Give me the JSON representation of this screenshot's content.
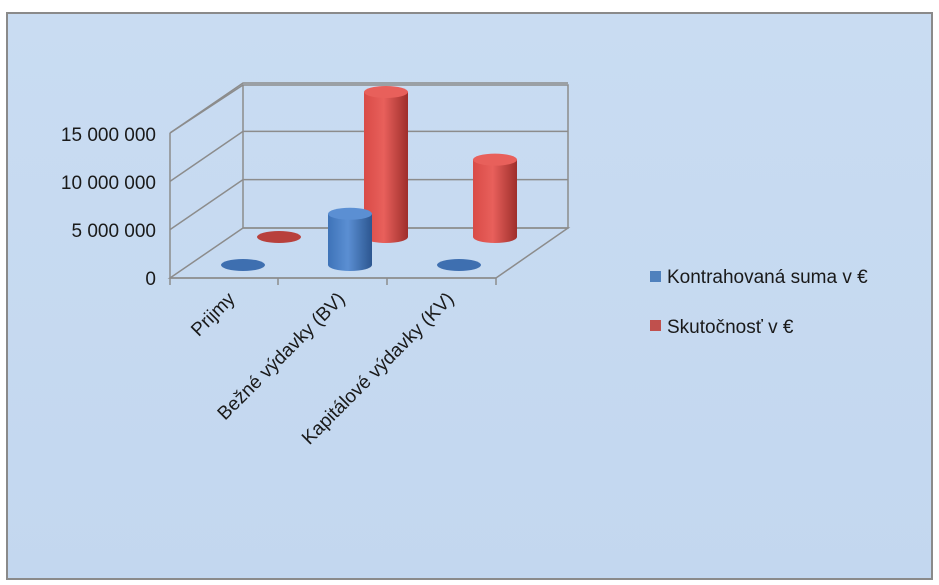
{
  "chart_data": {
    "type": "bar",
    "style": "3d-cylinder",
    "categories": [
      "Prijmy",
      "Bežné výdavky (BV)",
      "Kapitálové výdavky (KV)"
    ],
    "series": [
      {
        "name": "Kontrahovaná suma v €",
        "color": "#4f81bd",
        "values": [
          0,
          5300000,
          0
        ]
      },
      {
        "name": "Skutočnosť v €",
        "color": "#c0504d",
        "values": [
          0,
          15000000,
          8000000
        ]
      }
    ],
    "yticks": [
      "0",
      "5 000 000",
      "10 000 000",
      "15 000 000"
    ],
    "ylim": [
      0,
      20000000
    ],
    "grid": true,
    "legend": "right"
  }
}
